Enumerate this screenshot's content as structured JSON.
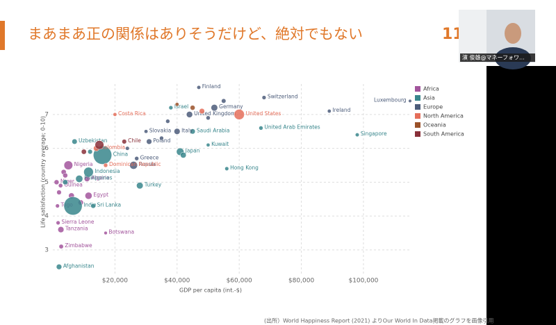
{
  "slide": {
    "title": "まあまあ正の関係はありそうだけど、絶対でもない",
    "page_number": "11",
    "source": "(出所）World Happiness Report (2021) よりOur World In Data掲載のグラフを画像引用"
  },
  "webcam": {
    "name": "濱 俊雄@マネーフォワ..."
  },
  "chart_data": {
    "type": "scatter",
    "x_label": "GDP per capita (int.-$)",
    "y_label": "Life satisfaction (country average; 0-10)",
    "xlim": [
      0,
      115000
    ],
    "ylim": [
      2.3,
      7.9
    ],
    "xticks": [
      {
        "value": 20000,
        "label": "$20,000"
      },
      {
        "value": 40000,
        "label": "$40,000"
      },
      {
        "value": 60000,
        "label": "$60,000"
      },
      {
        "value": 80000,
        "label": "$80,000"
      },
      {
        "value": 100000,
        "label": "$100,000"
      }
    ],
    "yticks": [
      3,
      4,
      5,
      6,
      7
    ],
    "grid": true,
    "legend": "right",
    "series": [
      {
        "name": "Africa",
        "color": "#a2559c",
        "x": [
          5000,
          1200,
          2500,
          11000,
          11500,
          1500,
          2600,
          1700,
          2700,
          17000,
          3500,
          6000,
          2000,
          4000,
          9000
        ],
        "values": [
          5.5,
          5.0,
          4.9,
          5.1,
          4.6,
          4.3,
          3.6,
          3.8,
          3.1,
          3.5,
          5.3,
          4.6,
          4.7,
          5.2,
          4.4
        ],
        "sizes": [
          206,
          24,
          13,
          44,
          102,
          8,
          60,
          8,
          15,
          2,
          30,
          50,
          20,
          25,
          35
        ],
        "labels": [
          "Nigeria",
          "Niger",
          "Guinea",
          "Algeria",
          "Egypt",
          "Togo",
          "Tanzania",
          "Sierra Leone",
          "Zimbabwe",
          "Botswana",
          null,
          null,
          null,
          null,
          null
        ]
      },
      {
        "name": "Asia",
        "color": "#38868c",
        "x": [
          38000,
          45000,
          67000,
          98000,
          50000,
          41000,
          56000,
          16000,
          6500,
          7000,
          11500,
          8500,
          28000,
          13000,
          2000,
          42000,
          12000,
          4000
        ],
        "values": [
          7.2,
          6.5,
          6.6,
          6.4,
          6.1,
          5.9,
          5.4,
          5.8,
          4.3,
          6.2,
          5.3,
          5.1,
          4.9,
          4.3,
          2.5,
          5.8,
          5.9,
          5.0
        ],
        "sizes": [
          9,
          35,
          10,
          6,
          4,
          126,
          7,
          1400,
          1380,
          34,
          270,
          110,
          84,
          22,
          39,
          52,
          20,
          30
        ],
        "labels": [
          "Israel",
          "Saudi Arabia",
          "United Arab Emirates",
          "Singapore",
          "Kuwait",
          "Japan",
          "Hong Kong",
          "China",
          "India",
          "Uzbekistan",
          "Indonesia",
          "Philippines",
          "Turkey",
          "Sri Lanka",
          "Afghanistan",
          null,
          null,
          null
        ]
      },
      {
        "name": "Europe",
        "color": "#4c5c7a",
        "x": [
          47000,
          68000,
          52000,
          44000,
          40000,
          30000,
          31000,
          27000,
          26000,
          89000,
          115000,
          55000,
          37000,
          35000,
          24000,
          50000
        ],
        "values": [
          7.8,
          7.5,
          7.2,
          7.0,
          6.5,
          6.5,
          6.2,
          5.7,
          5.5,
          7.1,
          7.4,
          7.4,
          6.8,
          6.3,
          6.0,
          6.9
        ],
        "sizes": [
          6,
          9,
          83,
          67,
          60,
          5,
          38,
          10,
          144,
          5,
          1,
          17,
          10,
          10,
          7,
          11
        ],
        "labels": [
          "Finland",
          "Switzerland",
          "Germany",
          "United Kingdom",
          "Italy",
          "Slovakia",
          "Poland",
          "Greece",
          "Russia",
          "Ireland",
          "Luxembourg",
          null,
          null,
          null,
          null,
          null
        ]
      },
      {
        "name": "North America",
        "color": "#e56e5a",
        "x": [
          20000,
          60000,
          14000,
          17000,
          48000
        ],
        "values": [
          7.0,
          7.0,
          6.0,
          5.5,
          7.1
        ],
        "sizes": [
          5,
          330,
          50,
          11,
          38
        ],
        "labels": [
          "Costa Rica",
          "United States",
          "Colombia",
          "Dominican Republic",
          null
        ]
      },
      {
        "name": "Oceania",
        "color": "#9a5129",
        "x": [
          45000,
          40000
        ],
        "values": [
          7.2,
          7.3
        ],
        "sizes": [
          25,
          5
        ],
        "labels": [
          null,
          null
        ]
      },
      {
        "name": "South America",
        "color": "#883039",
        "x": [
          23000,
          15000,
          10000
        ],
        "values": [
          6.2,
          6.1,
          5.9
        ],
        "sizes": [
          19,
          212,
          30
        ],
        "labels": [
          "Chile",
          null,
          null
        ]
      }
    ]
  }
}
